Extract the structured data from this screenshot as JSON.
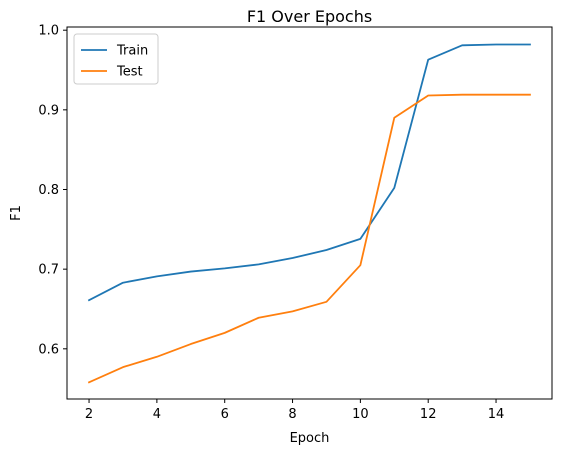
{
  "chart_data": {
    "type": "line",
    "title": "F1 Over Epochs",
    "xlabel": "Epoch",
    "ylabel": "F1",
    "x": [
      2,
      3,
      4,
      5,
      6,
      7,
      8,
      9,
      10,
      11,
      12,
      13,
      14,
      15
    ],
    "xlim": [
      1.35,
      15.65
    ],
    "ylim": [
      0.537,
      1.004
    ],
    "xticks": [
      2,
      4,
      6,
      8,
      10,
      12,
      14
    ],
    "yticks": [
      0.6,
      0.7,
      0.8,
      0.9,
      1.0
    ],
    "ytick_labels": [
      "0.6",
      "0.7",
      "0.8",
      "0.9",
      "1.0"
    ],
    "grid": false,
    "legend_position": "top-left",
    "series": [
      {
        "name": "Train",
        "color": "#1f77b4",
        "values": [
          0.661,
          0.683,
          0.691,
          0.697,
          0.701,
          0.706,
          0.714,
          0.724,
          0.738,
          0.802,
          0.963,
          0.981,
          0.982,
          0.982
        ]
      },
      {
        "name": "Test",
        "color": "#ff7f0e",
        "values": [
          0.558,
          0.577,
          0.59,
          0.606,
          0.62,
          0.639,
          0.647,
          0.659,
          0.705,
          0.89,
          0.918,
          0.919,
          0.919,
          0.919
        ]
      }
    ]
  }
}
